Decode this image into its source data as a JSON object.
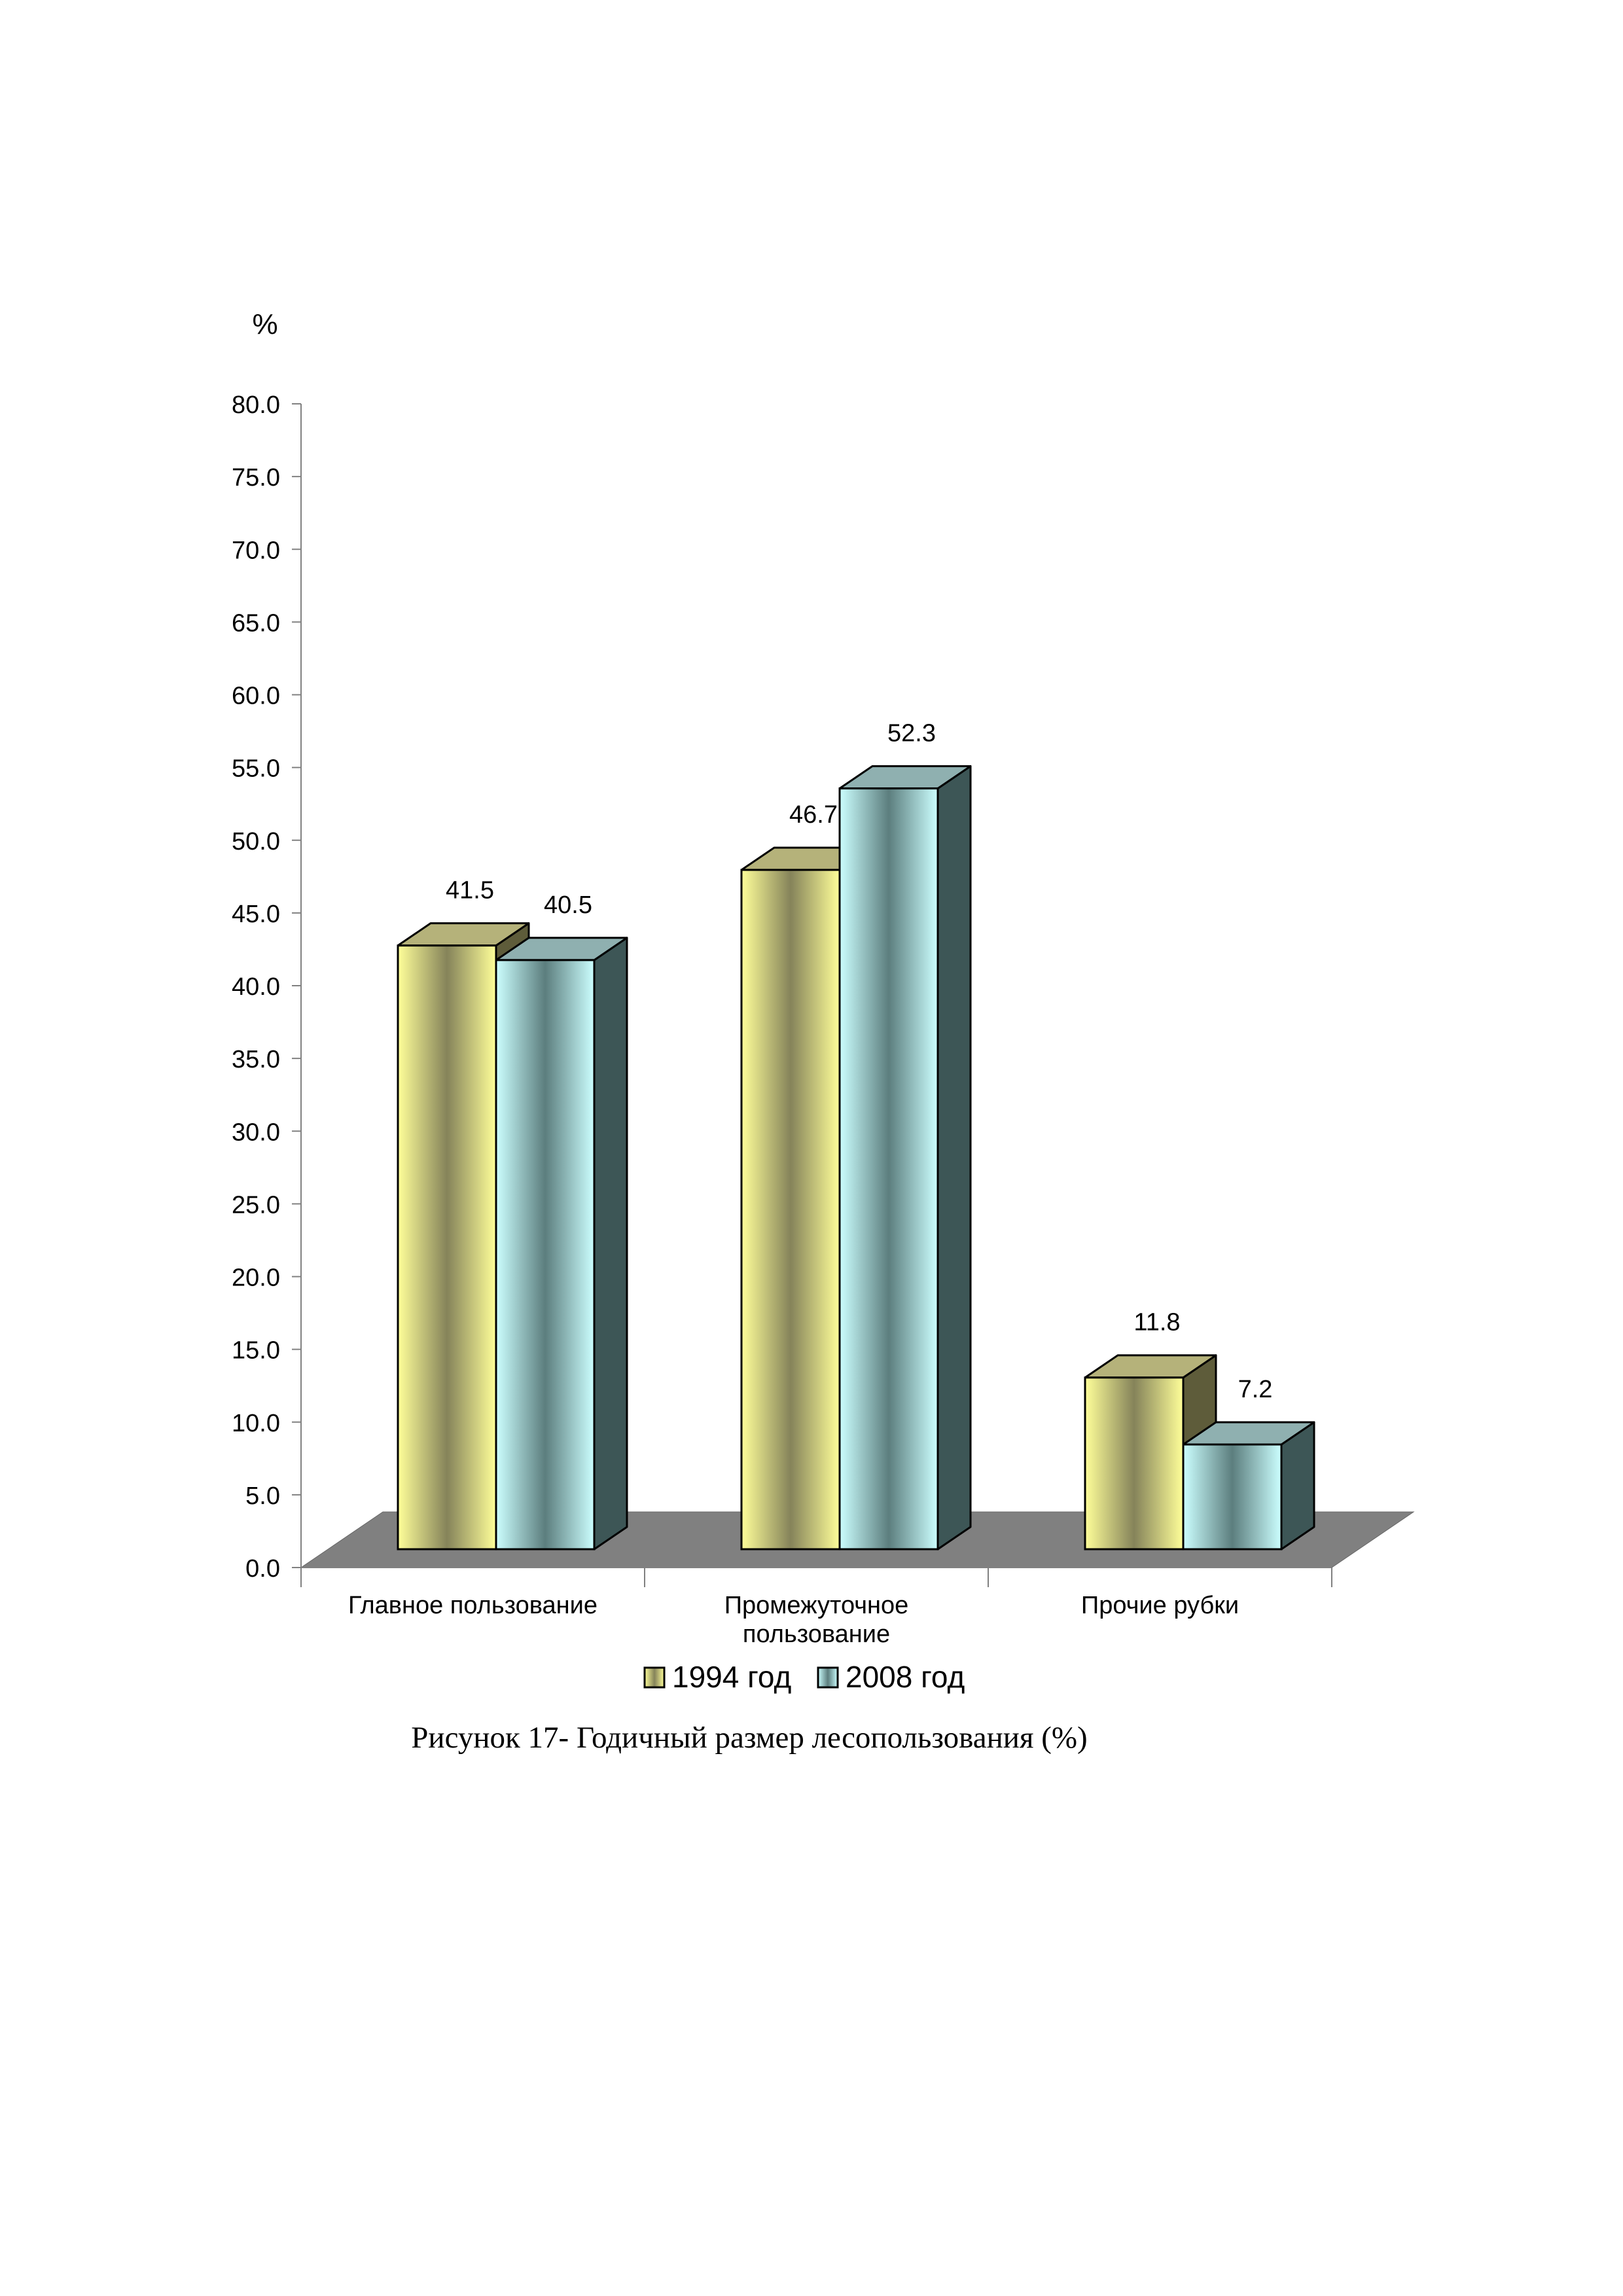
{
  "chart_data": {
    "type": "bar",
    "title": "",
    "ylabel": "%",
    "xlabel": "",
    "ylim": [
      0,
      80
    ],
    "ytick_step": 5,
    "ytick_labels": [
      "0.0",
      "5.0",
      "10.0",
      "15.0",
      "20.0",
      "25.0",
      "30.0",
      "35.0",
      "40.0",
      "45.0",
      "50.0",
      "55.0",
      "60.0",
      "65.0",
      "70.0",
      "75.0",
      "80.0"
    ],
    "categories": [
      [
        "Главное пользование"
      ],
      [
        "Промежуточное",
        "пользование"
      ],
      [
        "Прочие рубки"
      ]
    ],
    "series": [
      {
        "name": "1994 год",
        "values": [
          41.5,
          46.7,
          11.8
        ],
        "value_labels": [
          "41.5",
          "46.7",
          "11.8"
        ],
        "color": "#FFFF99"
      },
      {
        "name": "2008 год",
        "values": [
          40.5,
          52.3,
          7.2
        ],
        "value_labels": [
          "40.5",
          "52.3",
          "7.2"
        ],
        "color": "#CCFFFF"
      }
    ],
    "floor_color": "#808080",
    "grid": false,
    "legend": "bottom",
    "style": "3d-bar"
  },
  "caption": "Рисунок 17- Годичный размер лесопользования (%)"
}
